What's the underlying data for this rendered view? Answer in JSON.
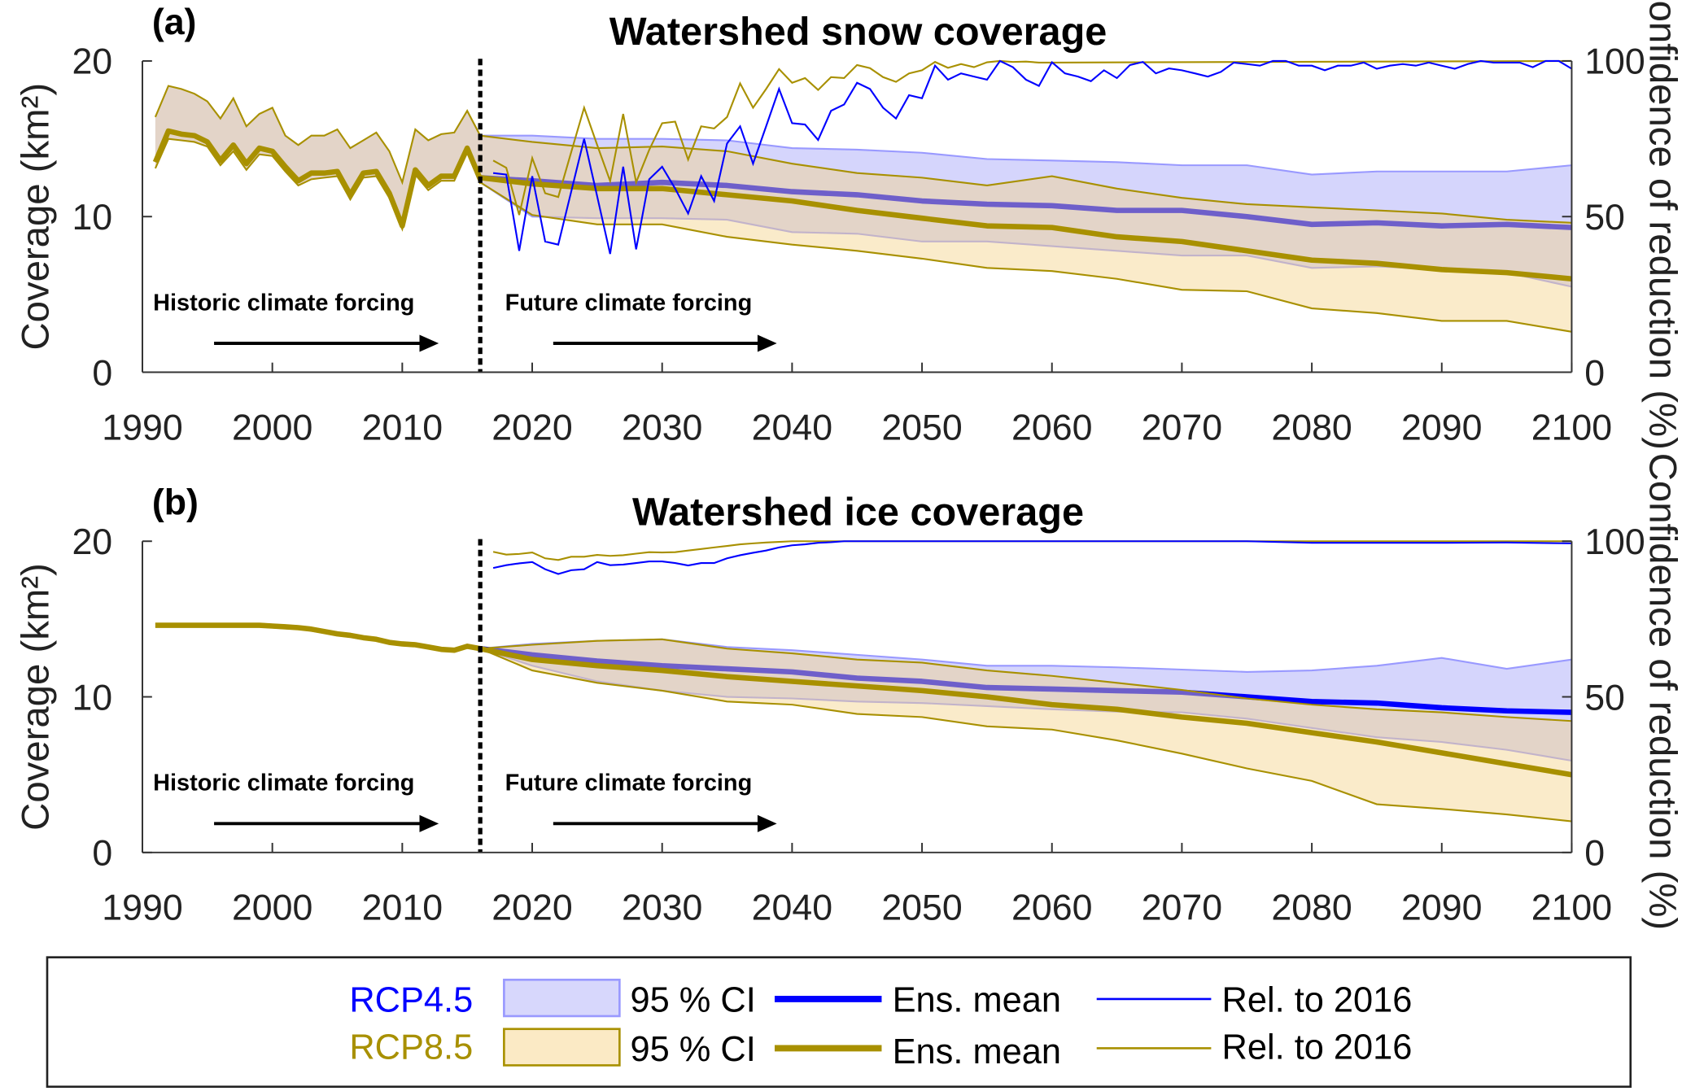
{
  "colors": {
    "rcp45": "#0000ff",
    "rcp45_ci_fill": "#d5d5fc",
    "rcp45_ci_edge": "#9999ff",
    "rcp85": "#a89000",
    "rcp85_ci_fill": "#f5d28a",
    "rcp85_ci_legend": "#fbeac5"
  },
  "legend": {
    "rows": [
      {
        "scenario": "RCP4.5",
        "ci_label": "95 % CI",
        "mean_label": "Ens. mean",
        "rel_label": "Rel. to 2016"
      },
      {
        "scenario": "RCP8.5",
        "ci_label": "95 % CI",
        "mean_label": "Ens. mean",
        "rel_label": "Rel. to 2016"
      }
    ]
  },
  "chart_data": [
    {
      "type": "line",
      "panel": "(a)",
      "title": "Watershed snow coverage",
      "ylabel": "Coverage (km²)",
      "y2label": "Confidence of reduction (%)",
      "xlim": [
        1990,
        2100
      ],
      "ylim": [
        0,
        20
      ],
      "y2lim": [
        0,
        100
      ],
      "xticks": [
        "1990",
        "2000",
        "2010",
        "2020",
        "2030",
        "2040",
        "2050",
        "2060",
        "2070",
        "2080",
        "2090",
        "2100"
      ],
      "yticks": [
        "0",
        "10",
        "20"
      ],
      "y2ticks": [
        "0",
        "50",
        "100"
      ],
      "grid": false,
      "divider_year": 2016,
      "annotations": [
        "Historic climate forcing",
        "Future climate forcing"
      ],
      "historic": {
        "x": [
          1991,
          1992,
          1993,
          1994,
          1995,
          1996,
          1997,
          1998,
          1999,
          2000,
          2001,
          2002,
          2003,
          2004,
          2005,
          2006,
          2007,
          2008,
          2009,
          2010,
          2011,
          2012,
          2013,
          2014,
          2015,
          2016
        ],
        "mean": [
          13.5,
          15.5,
          15.3,
          15.2,
          14.8,
          13.6,
          14.6,
          13.4,
          14.4,
          14.2,
          13.2,
          12.3,
          12.8,
          12.8,
          12.9,
          11.4,
          12.8,
          12.9,
          11.5,
          9.4,
          13.0,
          12.0,
          12.6,
          12.6,
          14.4,
          12.4
        ],
        "upper": [
          16.4,
          18.4,
          18.2,
          17.9,
          17.4,
          16.3,
          17.6,
          15.8,
          16.6,
          17.0,
          15.2,
          14.6,
          15.2,
          15.2,
          15.6,
          14.4,
          14.9,
          15.4,
          14.2,
          12.2,
          15.6,
          14.9,
          15.3,
          15.4,
          16.8,
          15.2
        ],
        "lower": [
          13.1,
          15.0,
          14.9,
          14.8,
          14.5,
          13.3,
          14.2,
          13.0,
          14.0,
          13.9,
          12.9,
          12.0,
          12.4,
          12.5,
          12.6,
          11.1,
          12.5,
          12.6,
          11.2,
          9.2,
          12.7,
          11.7,
          12.3,
          12.3,
          14.1,
          12.1
        ]
      },
      "rcp45": {
        "x": [
          2016,
          2020,
          2025,
          2030,
          2035,
          2040,
          2045,
          2050,
          2055,
          2060,
          2065,
          2070,
          2075,
          2080,
          2085,
          2090,
          2095,
          2100
        ],
        "mean": [
          12.5,
          12.3,
          12.0,
          12.2,
          12.0,
          11.6,
          11.4,
          11.0,
          10.8,
          10.7,
          10.4,
          10.4,
          10.0,
          9.5,
          9.6,
          9.4,
          9.5,
          9.3
        ],
        "upper": [
          15.2,
          15.2,
          15.0,
          15.0,
          14.9,
          14.4,
          14.3,
          14.1,
          13.7,
          13.6,
          13.5,
          13.3,
          13.3,
          12.7,
          12.9,
          12.9,
          12.9,
          13.3
        ],
        "lower": [
          12.2,
          10.0,
          9.9,
          9.9,
          9.8,
          9.0,
          8.9,
          8.4,
          8.4,
          8.1,
          7.8,
          7.5,
          7.5,
          6.7,
          6.8,
          6.6,
          6.4,
          5.5
        ],
        "confidence": {
          "x": [
            2017,
            2018,
            2019,
            2020,
            2021,
            2022,
            2023,
            2024,
            2025,
            2026,
            2027,
            2028,
            2029,
            2030,
            2031,
            2032,
            2033,
            2034,
            2035,
            2036,
            2037,
            2038,
            2039,
            2040,
            2041,
            2042,
            2043,
            2044,
            2045,
            2046,
            2047,
            2048,
            2049,
            2050,
            2051,
            2052,
            2053,
            2054,
            2055,
            2056,
            2057,
            2058,
            2059,
            2060,
            2061,
            2062,
            2063,
            2064,
            2065,
            2066,
            2067,
            2068,
            2069,
            2070,
            2071,
            2072,
            2073,
            2074,
            2075,
            2076,
            2077,
            2078,
            2079,
            2080,
            2081,
            2082,
            2083,
            2084,
            2085,
            2086,
            2087,
            2088,
            2089,
            2090,
            2091,
            2092,
            2093,
            2094,
            2095,
            2096,
            2097,
            2098,
            2099,
            2100
          ],
          "values": [
            64,
            63.5,
            39,
            63,
            42,
            41,
            58,
            75,
            56.5,
            38,
            66,
            39.5,
            62,
            66,
            59,
            51,
            63,
            55,
            73.5,
            79,
            67,
            79,
            91,
            80,
            79.6,
            74.6,
            84,
            86,
            93,
            91,
            85,
            81.5,
            89,
            88,
            98.5,
            94,
            96,
            95,
            94,
            100,
            98,
            94,
            92,
            99.6,
            96,
            95,
            93.5,
            97,
            94.5,
            98.7,
            99.7,
            96,
            97.6,
            97,
            96,
            95,
            96.5,
            99.5,
            99,
            98.5,
            100,
            100,
            98.5,
            98.5,
            97,
            98.5,
            98.5,
            99.5,
            97.5,
            98.5,
            99,
            98.5,
            99.5,
            98.5,
            97.5,
            99,
            100,
            99.5,
            99.5,
            99.5,
            98,
            100,
            100,
            97.5
          ]
        }
      },
      "rcp85": {
        "x": [
          2016,
          2020,
          2025,
          2030,
          2035,
          2040,
          2045,
          2050,
          2055,
          2060,
          2065,
          2070,
          2075,
          2080,
          2085,
          2090,
          2095,
          2100
        ],
        "mean": [
          12.5,
          12.1,
          11.8,
          11.8,
          11.4,
          11.0,
          10.4,
          9.9,
          9.4,
          9.3,
          8.7,
          8.4,
          7.8,
          7.2,
          7.0,
          6.6,
          6.4,
          6.0
        ],
        "upper": [
          15.2,
          14.8,
          14.4,
          14.5,
          14.2,
          13.4,
          12.8,
          12.5,
          12.0,
          12.6,
          11.8,
          11.2,
          10.8,
          10.6,
          10.4,
          10.2,
          9.8,
          9.6
        ],
        "lower": [
          12.2,
          10.1,
          9.5,
          9.5,
          8.7,
          8.2,
          7.8,
          7.3,
          6.7,
          6.5,
          6.0,
          5.3,
          5.2,
          4.1,
          3.8,
          3.3,
          3.3,
          2.6
        ],
        "confidence": {
          "x": [
            2017,
            2018,
            2019,
            2020,
            2021,
            2022,
            2023,
            2024,
            2025,
            2026,
            2027,
            2028,
            2029,
            2030,
            2031,
            2032,
            2033,
            2034,
            2035,
            2036,
            2037,
            2038,
            2039,
            2040,
            2041,
            2042,
            2043,
            2044,
            2045,
            2046,
            2047,
            2048,
            2049,
            2050,
            2051,
            2052,
            2053,
            2054,
            2055,
            2056,
            2057,
            2058,
            2059,
            2060,
            2100
          ],
          "values": [
            68,
            65.7,
            50.5,
            68.8,
            57.5,
            56.3,
            70.7,
            85,
            73,
            61.4,
            83,
            61,
            71.4,
            80,
            80.5,
            68.3,
            79,
            78.3,
            82,
            92.8,
            85,
            91,
            97.4,
            93,
            94.5,
            90.7,
            94.8,
            94.5,
            98.7,
            97.7,
            94.8,
            93.3,
            96,
            97,
            99.7,
            97.8,
            99,
            98,
            99.6,
            100,
            99.7,
            99.8,
            99.5,
            99.5,
            100
          ]
        }
      }
    },
    {
      "type": "line",
      "panel": "(b)",
      "title": "Watershed ice coverage",
      "ylabel": "Coverage (km²)",
      "y2label": "Confidence of reduction (%)",
      "xlim": [
        1990,
        2100
      ],
      "ylim": [
        0,
        20
      ],
      "y2lim": [
        0,
        100
      ],
      "xticks": [
        "1990",
        "2000",
        "2010",
        "2020",
        "2030",
        "2040",
        "2050",
        "2060",
        "2070",
        "2080",
        "2090",
        "2100"
      ],
      "yticks": [
        "0",
        "10",
        "20"
      ],
      "y2ticks": [
        "0",
        "50",
        "100"
      ],
      "grid": false,
      "divider_year": 2016,
      "annotations": [
        "Historic climate forcing",
        "Future climate forcing"
      ],
      "historic": {
        "x": [
          1991,
          1992,
          1993,
          1994,
          1995,
          1996,
          1997,
          1998,
          1999,
          2000,
          2001,
          2002,
          2003,
          2004,
          2005,
          2006,
          2007,
          2008,
          2009,
          2010,
          2011,
          2012,
          2013,
          2014,
          2015,
          2016
        ],
        "mean": [
          14.6,
          14.6,
          14.6,
          14.6,
          14.6,
          14.6,
          14.6,
          14.6,
          14.6,
          14.55,
          14.5,
          14.45,
          14.35,
          14.2,
          14.05,
          13.95,
          13.8,
          13.7,
          13.5,
          13.4,
          13.35,
          13.2,
          13.05,
          13.0,
          13.25,
          13.1
        ],
        "upper": [
          14.7,
          14.7,
          14.7,
          14.7,
          14.7,
          14.7,
          14.7,
          14.7,
          14.7,
          14.65,
          14.6,
          14.55,
          14.45,
          14.3,
          14.15,
          14.05,
          13.9,
          13.8,
          13.6,
          13.5,
          13.45,
          13.3,
          13.15,
          13.1,
          13.35,
          13.2
        ],
        "lower": [
          14.5,
          14.5,
          14.5,
          14.5,
          14.5,
          14.5,
          14.5,
          14.5,
          14.5,
          14.45,
          14.4,
          14.35,
          14.25,
          14.1,
          13.95,
          13.85,
          13.7,
          13.6,
          13.4,
          13.3,
          13.25,
          13.1,
          12.95,
          12.9,
          13.15,
          13.0
        ]
      },
      "rcp45": {
        "x": [
          2016,
          2020,
          2025,
          2030,
          2035,
          2040,
          2045,
          2050,
          2055,
          2060,
          2065,
          2070,
          2075,
          2080,
          2085,
          2090,
          2095,
          2100
        ],
        "mean": [
          13.1,
          12.7,
          12.3,
          12.0,
          11.8,
          11.6,
          11.2,
          11.0,
          10.6,
          10.5,
          10.4,
          10.3,
          10.0,
          9.7,
          9.6,
          9.3,
          9.1,
          9.0
        ],
        "upper": [
          13.1,
          13.4,
          13.6,
          13.7,
          13.2,
          13.0,
          12.7,
          12.4,
          12.0,
          12.0,
          11.9,
          11.75,
          11.6,
          11.7,
          12.0,
          12.5,
          11.8,
          12.4
        ],
        "lower": [
          13.1,
          12.0,
          11.0,
          10.4,
          10.0,
          9.9,
          9.7,
          9.6,
          9.4,
          9.2,
          9.05,
          9.0,
          8.6,
          8.0,
          7.4,
          7.1,
          6.6,
          5.9
        ],
        "confidence": {
          "x": [
            2017,
            2018,
            2019,
            2020,
            2021,
            2022,
            2023,
            2024,
            2025,
            2026,
            2027,
            2028,
            2029,
            2030,
            2031,
            2032,
            2033,
            2034,
            2035,
            2036,
            2037,
            2038,
            2039,
            2040,
            2041,
            2042,
            2043,
            2044,
            2045,
            2050,
            2055,
            2060,
            2065,
            2070,
            2075,
            2080,
            2085,
            2090,
            2095,
            2100
          ],
          "values": [
            91.4,
            92.3,
            92.9,
            93.3,
            91,
            89.5,
            90.7,
            91,
            93.3,
            92.3,
            92.5,
            93,
            93.5,
            93.5,
            93,
            92.2,
            93,
            93,
            94.5,
            95.5,
            96.3,
            97,
            98,
            98.7,
            99,
            99.5,
            99.7,
            100,
            100,
            100,
            100,
            100,
            100,
            100,
            100,
            99.5,
            99.5,
            99.5,
            99.6,
            99.3
          ]
        }
      },
      "rcp85": {
        "x": [
          2016,
          2020,
          2025,
          2030,
          2035,
          2040,
          2045,
          2050,
          2055,
          2060,
          2065,
          2070,
          2075,
          2080,
          2085,
          2090,
          2095,
          2100
        ],
        "mean": [
          13.1,
          12.4,
          12.0,
          11.7,
          11.3,
          11.0,
          10.7,
          10.4,
          10.0,
          9.5,
          9.2,
          8.7,
          8.3,
          7.7,
          7.1,
          6.4,
          5.7,
          5.0
        ],
        "upper": [
          13.1,
          13.35,
          13.6,
          13.7,
          13.1,
          12.8,
          12.4,
          12.2,
          11.7,
          11.35,
          10.9,
          10.45,
          9.9,
          9.5,
          9.2,
          9.0,
          8.7,
          8.45
        ],
        "lower": [
          13.1,
          11.7,
          10.9,
          10.4,
          9.7,
          9.5,
          8.9,
          8.7,
          8.1,
          7.9,
          7.2,
          6.35,
          5.4,
          4.6,
          3.1,
          2.8,
          2.45,
          2.0
        ],
        "confidence": {
          "x": [
            2017,
            2018,
            2019,
            2020,
            2021,
            2022,
            2023,
            2024,
            2025,
            2026,
            2027,
            2028,
            2029,
            2030,
            2031,
            2032,
            2033,
            2034,
            2035,
            2036,
            2037,
            2038,
            2039,
            2040,
            2100
          ],
          "values": [
            96.6,
            95.7,
            95.9,
            96.4,
            94.5,
            94,
            95,
            95,
            95.6,
            95.3,
            95.5,
            96,
            96.5,
            96.4,
            96.5,
            97,
            97.5,
            98,
            98.5,
            99,
            99.3,
            99.6,
            99.8,
            100,
            100
          ]
        }
      }
    }
  ]
}
